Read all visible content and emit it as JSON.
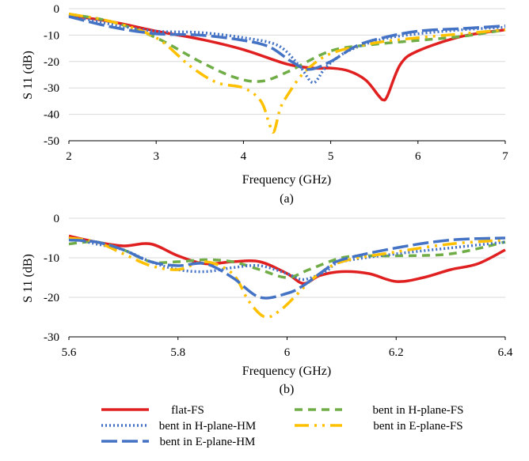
{
  "figure": {
    "legend": [
      {
        "key": "flat",
        "label": "flat-FS"
      },
      {
        "key": "hfs",
        "label": "bent in H-plane-FS"
      },
      {
        "key": "hhm",
        "label": "bent in H-plane-HM"
      },
      {
        "key": "efs",
        "label": "bent in E-plane-FS"
      },
      {
        "key": "ehm",
        "label": "bent in E-plane-HM"
      }
    ],
    "styles": {
      "flat": {
        "color": "#e02020",
        "dash": "none"
      },
      "hfs": {
        "color": "#70ad47",
        "dash": "10 7"
      },
      "hhm": {
        "color": "#4472c4",
        "dash": "2 3"
      },
      "efs": {
        "color": "#ffc000",
        "dash": "18 7 3 7 3 7"
      },
      "ehm": {
        "color": "#4472c4",
        "dash": "20 6"
      }
    }
  },
  "chart_data": [
    {
      "type": "line",
      "panel_label": "(a)",
      "xlabel": "Frequency (GHz)",
      "ylabel": "S 11 (dB)",
      "xlim": [
        2,
        7
      ],
      "ylim": [
        -50,
        0
      ],
      "xticks": [
        "2",
        "3",
        "4",
        "5",
        "6",
        "7"
      ],
      "yticks": [
        "0",
        "-10",
        "-20",
        "-30",
        "-40",
        "-50"
      ],
      "grid": "horizontal",
      "series": [
        {
          "key": "flat",
          "name": "flat-FS",
          "x": [
            2.0,
            2.5,
            3.0,
            3.5,
            4.0,
            4.5,
            4.8,
            5.0,
            5.2,
            5.4,
            5.55,
            5.6,
            5.65,
            5.8,
            6.0,
            6.5,
            7.0
          ],
          "y": [
            -2.5,
            -5,
            -8.5,
            -11.5,
            -15.5,
            -21,
            -22.5,
            -22.5,
            -23.5,
            -27,
            -33,
            -34.5,
            -33,
            -21,
            -16,
            -10.5,
            -8
          ]
        },
        {
          "key": "hfs",
          "name": "bent in H-plane-FS",
          "x": [
            2.0,
            2.5,
            3.0,
            3.5,
            3.9,
            4.2,
            4.5,
            5.0,
            5.5,
            6.0,
            6.5,
            7.0
          ],
          "y": [
            -2,
            -5,
            -11,
            -20,
            -26,
            -27.5,
            -24,
            -16,
            -13.5,
            -12,
            -10.5,
            -8
          ]
        },
        {
          "key": "hhm",
          "name": "bent in H-plane-HM",
          "x": [
            2.0,
            2.5,
            3.0,
            3.5,
            4.0,
            4.4,
            4.65,
            4.8,
            4.95,
            5.2,
            5.6,
            6.0,
            6.5,
            7.0
          ],
          "y": [
            -2.5,
            -6,
            -8.5,
            -9,
            -11,
            -14,
            -22,
            -28,
            -22,
            -16,
            -11.5,
            -9.5,
            -8,
            -7
          ]
        },
        {
          "key": "efs",
          "name": "bent in E-plane-FS",
          "x": [
            2.0,
            2.5,
            3.0,
            3.4,
            3.7,
            4.0,
            4.2,
            4.3,
            4.35,
            4.42,
            4.5,
            4.7,
            5.0,
            5.5,
            6.0,
            6.5,
            7.0
          ],
          "y": [
            -2,
            -5,
            -11,
            -22,
            -28,
            -30,
            -35,
            -44,
            -46.5,
            -38,
            -33,
            -24,
            -17,
            -13,
            -11,
            -9.5,
            -8
          ]
        },
        {
          "key": "ehm",
          "name": "bent in E-plane-HM",
          "x": [
            2.0,
            2.5,
            3.0,
            3.5,
            4.0,
            4.3,
            4.55,
            4.75,
            5.0,
            5.3,
            5.6,
            6.0,
            6.5,
            7.0
          ],
          "y": [
            -3,
            -7,
            -9.5,
            -10,
            -12,
            -14.5,
            -20,
            -23,
            -20,
            -14,
            -11,
            -8.5,
            -7.5,
            -6.5
          ]
        }
      ]
    },
    {
      "type": "line",
      "panel_label": "(b)",
      "xlabel": "Frequency (GHz)",
      "ylabel": "S 11 (dB)",
      "xlim": [
        5.6,
        6.4
      ],
      "ylim": [
        -30,
        0
      ],
      "xticks": [
        "5.6",
        "5.8",
        "6",
        "6.2",
        "6.4"
      ],
      "yticks": [
        "0",
        "-10",
        "-20",
        "-30"
      ],
      "grid": "horizontal",
      "series": [
        {
          "key": "flat",
          "name": "flat-FS",
          "x": [
            5.6,
            5.65,
            5.7,
            5.75,
            5.8,
            5.85,
            5.9,
            5.95,
            6.0,
            6.03,
            6.06,
            6.1,
            6.15,
            6.2,
            6.25,
            6.3,
            6.35,
            6.4
          ],
          "y": [
            -4.5,
            -6,
            -7,
            -6.5,
            -9.5,
            -11.5,
            -11,
            -11,
            -14,
            -16.5,
            -14.5,
            -13.5,
            -14,
            -16,
            -15,
            -13,
            -11.5,
            -8
          ]
        },
        {
          "key": "hfs",
          "name": "bent in H-plane-FS",
          "x": [
            5.6,
            5.65,
            5.7,
            5.75,
            5.8,
            5.85,
            5.9,
            5.95,
            6.0,
            6.04,
            6.1,
            6.15,
            6.2,
            6.3,
            6.4
          ],
          "y": [
            -6.5,
            -6,
            -8,
            -11,
            -11,
            -10.5,
            -11,
            -13,
            -15,
            -13,
            -10,
            -9.5,
            -9.5,
            -9,
            -6
          ]
        },
        {
          "key": "hhm",
          "name": "bent in H-plane-HM",
          "x": [
            5.6,
            5.65,
            5.7,
            5.75,
            5.8,
            5.85,
            5.9,
            5.95,
            6.0,
            6.03,
            6.07,
            6.1,
            6.2,
            6.3,
            6.4
          ],
          "y": [
            -5,
            -6.5,
            -8,
            -11,
            -13,
            -13.5,
            -12.5,
            -12,
            -14,
            -15.5,
            -13.5,
            -11,
            -9,
            -7.5,
            -6
          ]
        },
        {
          "key": "efs",
          "name": "bent in E-plane-FS",
          "x": [
            5.6,
            5.65,
            5.7,
            5.75,
            5.8,
            5.85,
            5.9,
            5.93,
            5.96,
            5.99,
            6.02,
            6.05,
            6.1,
            6.2,
            6.3,
            6.4
          ],
          "y": [
            -5,
            -6,
            -9,
            -12,
            -13,
            -11,
            -14,
            -21,
            -25,
            -23,
            -19,
            -15,
            -11,
            -8.5,
            -6.5,
            -5.5
          ]
        },
        {
          "key": "ehm",
          "name": "bent in E-plane-HM",
          "x": [
            5.6,
            5.65,
            5.7,
            5.75,
            5.8,
            5.85,
            5.9,
            5.95,
            6.0,
            6.03,
            6.07,
            6.1,
            6.2,
            6.3,
            6.4
          ],
          "y": [
            -5.5,
            -6,
            -8,
            -11,
            -12,
            -11.5,
            -15,
            -20,
            -19,
            -17,
            -13,
            -10.5,
            -7.5,
            -5.5,
            -5
          ]
        }
      ]
    }
  ]
}
